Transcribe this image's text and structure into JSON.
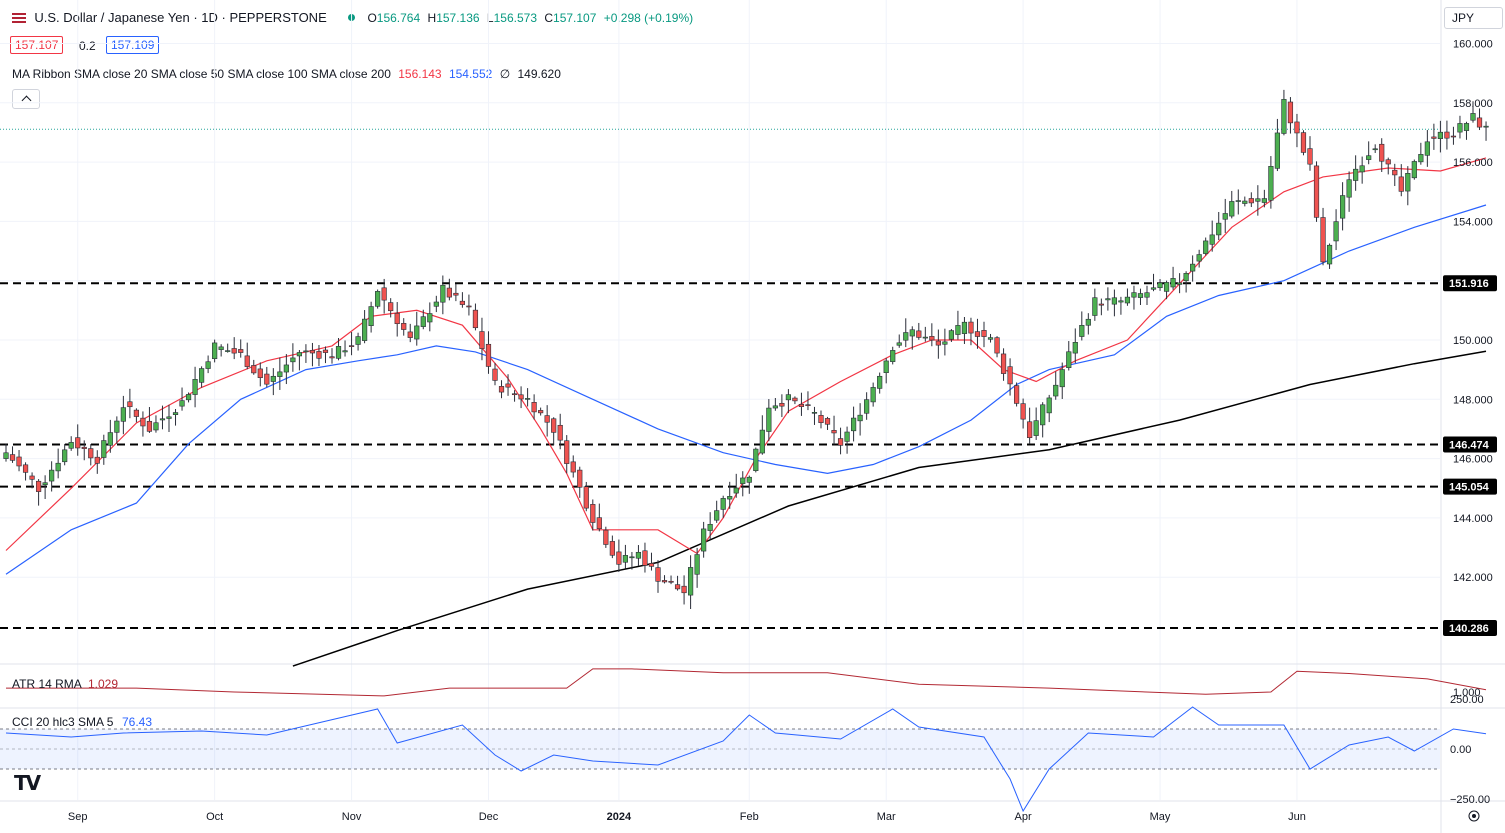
{
  "header": {
    "symbol": "U.S. Dollar / Japanese Yen · 1D · PEPPERSTONE",
    "ohlc": {
      "O": "156.764",
      "H": "157.136",
      "L": "156.573",
      "C": "157.107",
      "chg": "+0.298 (+0.19%)"
    },
    "o_label": "O",
    "h_label": "H",
    "l_label": "L",
    "c_label": "C",
    "bid": "157.107",
    "spread": "0.2",
    "ask": "157.109",
    "ma_label": "MA Ribbon SMA close 20 SMA close 50 SMA close 100 SMA close 200",
    "ma20": "156.143",
    "ma50": "154.552",
    "ma100": "∅",
    "ma200": "149.620",
    "currency": "JPY"
  },
  "colors": {
    "up": "#26a69a",
    "down": "#ef5350",
    "upBody": "#4caf50",
    "ma20": "#f23645",
    "ma50": "#2962ff",
    "ma200": "#000000",
    "atr": "#b22833",
    "cci": "#2962ff"
  },
  "chart_data": [
    {
      "type": "candlestick",
      "title": "U.S. Dollar / Japanese Yen · 1D · PEPPERSTONE",
      "ylim": [
        140,
        160.5
      ],
      "y_ticks": [
        142,
        144,
        146,
        148,
        150,
        152,
        154,
        156,
        158,
        160
      ],
      "x_labels": [
        "Sep",
        "Oct",
        "Nov",
        "Dec",
        "2024",
        "Feb",
        "Mar",
        "Apr",
        "May",
        "Jun"
      ],
      "levels": [
        {
          "value": 151.916,
          "label": "151.916"
        },
        {
          "value": 146.474,
          "label": "146.474"
        },
        {
          "value": 145.054,
          "label": "145.054"
        },
        {
          "value": 140.286,
          "label": "140.286"
        }
      ],
      "last_price": 157.107,
      "anchors": [
        [
          0,
          146.2
        ],
        [
          5,
          145.0
        ],
        [
          10,
          146.6
        ],
        [
          14,
          146.0
        ],
        [
          18,
          147.8
        ],
        [
          22,
          147.0
        ],
        [
          27,
          147.9
        ],
        [
          32,
          149.8
        ],
        [
          36,
          149.5
        ],
        [
          40,
          148.5
        ],
        [
          45,
          149.6
        ],
        [
          50,
          149.5
        ],
        [
          54,
          150.0
        ],
        [
          57,
          151.7
        ],
        [
          62,
          150.0
        ],
        [
          67,
          151.7
        ],
        [
          71,
          151.0
        ],
        [
          75,
          148.5
        ],
        [
          80,
          148.0
        ],
        [
          84,
          147.0
        ],
        [
          88,
          145.0
        ],
        [
          90,
          144.0
        ],
        [
          94,
          142.5
        ],
        [
          97,
          142.8
        ],
        [
          100,
          142.0
        ],
        [
          104,
          141.5
        ],
        [
          107,
          143.5
        ],
        [
          110,
          144.7
        ],
        [
          114,
          145.5
        ],
        [
          117,
          147.8
        ],
        [
          120,
          148.0
        ],
        [
          124,
          147.5
        ],
        [
          128,
          146.5
        ],
        [
          132,
          148.0
        ],
        [
          136,
          149.8
        ],
        [
          139,
          150.3
        ],
        [
          143,
          149.8
        ],
        [
          147,
          150.5
        ],
        [
          151,
          150.0
        ],
        [
          154,
          148.5
        ],
        [
          157,
          146.8
        ],
        [
          161,
          148.5
        ],
        [
          164,
          150.0
        ],
        [
          167,
          151.3
        ],
        [
          171,
          151.3
        ],
        [
          175,
          151.6
        ],
        [
          180,
          152.0
        ],
        [
          184,
          153.3
        ],
        [
          188,
          154.6
        ],
        [
          193,
          154.8
        ],
        [
          196,
          158.0
        ],
        [
          200,
          155.8
        ],
        [
          202,
          152.5
        ],
        [
          206,
          155.5
        ],
        [
          210,
          156.6
        ],
        [
          214,
          155.0
        ],
        [
          218,
          156.8
        ],
        [
          222,
          157.0
        ],
        [
          225,
          157.5
        ],
        [
          227,
          157.1
        ]
      ],
      "x_label_idx": [
        11,
        32,
        53,
        74,
        94,
        114,
        135,
        156,
        177,
        198
      ],
      "ma20": [
        [
          0,
          142.9
        ],
        [
          10,
          145.0
        ],
        [
          20,
          147.2
        ],
        [
          30,
          148.4
        ],
        [
          40,
          149.3
        ],
        [
          50,
          149.8
        ],
        [
          56,
          150.8
        ],
        [
          63,
          151.0
        ],
        [
          70,
          150.5
        ],
        [
          77,
          148.7
        ],
        [
          82,
          147.0
        ],
        [
          86,
          145.5
        ],
        [
          90,
          143.6
        ],
        [
          100,
          143.6
        ],
        [
          106,
          142.8
        ],
        [
          110,
          144.0
        ],
        [
          115,
          146.0
        ],
        [
          120,
          147.6
        ],
        [
          128,
          148.6
        ],
        [
          136,
          149.5
        ],
        [
          142,
          150.0
        ],
        [
          148,
          150.0
        ],
        [
          153,
          149.0
        ],
        [
          158,
          148.6
        ],
        [
          164,
          149.3
        ],
        [
          172,
          150.0
        ],
        [
          180,
          151.9
        ],
        [
          188,
          153.8
        ],
        [
          196,
          155.0
        ],
        [
          202,
          155.5
        ],
        [
          212,
          155.8
        ],
        [
          220,
          155.7
        ],
        [
          227,
          156.143
        ]
      ],
      "ma50": [
        [
          0,
          142.1
        ],
        [
          10,
          143.6
        ],
        [
          20,
          144.5
        ],
        [
          28,
          146.5
        ],
        [
          36,
          148.0
        ],
        [
          46,
          149.0
        ],
        [
          54,
          149.3
        ],
        [
          60,
          149.5
        ],
        [
          66,
          149.8
        ],
        [
          72,
          149.6
        ],
        [
          80,
          149.0
        ],
        [
          90,
          148.0
        ],
        [
          100,
          147.0
        ],
        [
          110,
          146.2
        ],
        [
          118,
          145.8
        ],
        [
          126,
          145.5
        ],
        [
          133,
          145.8
        ],
        [
          140,
          146.4
        ],
        [
          148,
          147.3
        ],
        [
          155,
          148.5
        ],
        [
          160,
          149.0
        ],
        [
          170,
          149.5
        ],
        [
          178,
          150.8
        ],
        [
          186,
          151.5
        ],
        [
          196,
          152.0
        ],
        [
          206,
          153.0
        ],
        [
          216,
          153.8
        ],
        [
          227,
          154.552
        ]
      ],
      "ma200": [
        [
          44,
          139.0
        ],
        [
          60,
          140.2
        ],
        [
          80,
          141.6
        ],
        [
          100,
          142.5
        ],
        [
          120,
          144.4
        ],
        [
          140,
          145.7
        ],
        [
          160,
          146.3
        ],
        [
          180,
          147.3
        ],
        [
          200,
          148.5
        ],
        [
          216,
          149.2
        ],
        [
          227,
          149.62
        ]
      ]
    },
    {
      "type": "line",
      "title": "ATR 14 RMA",
      "value_label": "1.029",
      "y_ticks": [
        1.0
      ],
      "series": [
        [
          0,
          1.05
        ],
        [
          20,
          1.05
        ],
        [
          35,
          1.0
        ],
        [
          58,
          0.95
        ],
        [
          68,
          1.05
        ],
        [
          86,
          1.05
        ],
        [
          90,
          1.3
        ],
        [
          96,
          1.3
        ],
        [
          110,
          1.25
        ],
        [
          126,
          1.25
        ],
        [
          140,
          1.1
        ],
        [
          160,
          1.05
        ],
        [
          184,
          0.97
        ],
        [
          194,
          1.0
        ],
        [
          198,
          1.27
        ],
        [
          206,
          1.24
        ],
        [
          218,
          1.17
        ],
        [
          227,
          1.029
        ]
      ]
    },
    {
      "type": "line",
      "title": "CCI 20 hlc3 SMA 5",
      "value_label": "76.43",
      "y_ticks": [
        250,
        0,
        -250
      ],
      "tick_labels": [
        "250.00",
        "0.00",
        "−250.00"
      ],
      "band": [
        -100,
        100
      ],
      "series": [
        [
          0,
          80
        ],
        [
          10,
          60
        ],
        [
          18,
          80
        ],
        [
          30,
          90
        ],
        [
          40,
          70
        ],
        [
          57,
          200
        ],
        [
          60,
          30
        ],
        [
          70,
          120
        ],
        [
          75,
          -30
        ],
        [
          79,
          -110
        ],
        [
          84,
          -30
        ],
        [
          90,
          -60
        ],
        [
          100,
          -80
        ],
        [
          110,
          40
        ],
        [
          114,
          170
        ],
        [
          118,
          80
        ],
        [
          128,
          50
        ],
        [
          136,
          200
        ],
        [
          140,
          110
        ],
        [
          150,
          60
        ],
        [
          154,
          -150
        ],
        [
          156,
          -310
        ],
        [
          160,
          -100
        ],
        [
          166,
          80
        ],
        [
          176,
          60
        ],
        [
          182,
          210
        ],
        [
          186,
          120
        ],
        [
          196,
          120
        ],
        [
          200,
          -100
        ],
        [
          206,
          20
        ],
        [
          212,
          60
        ],
        [
          216,
          -10
        ],
        [
          222,
          100
        ],
        [
          227,
          76
        ]
      ]
    }
  ]
}
